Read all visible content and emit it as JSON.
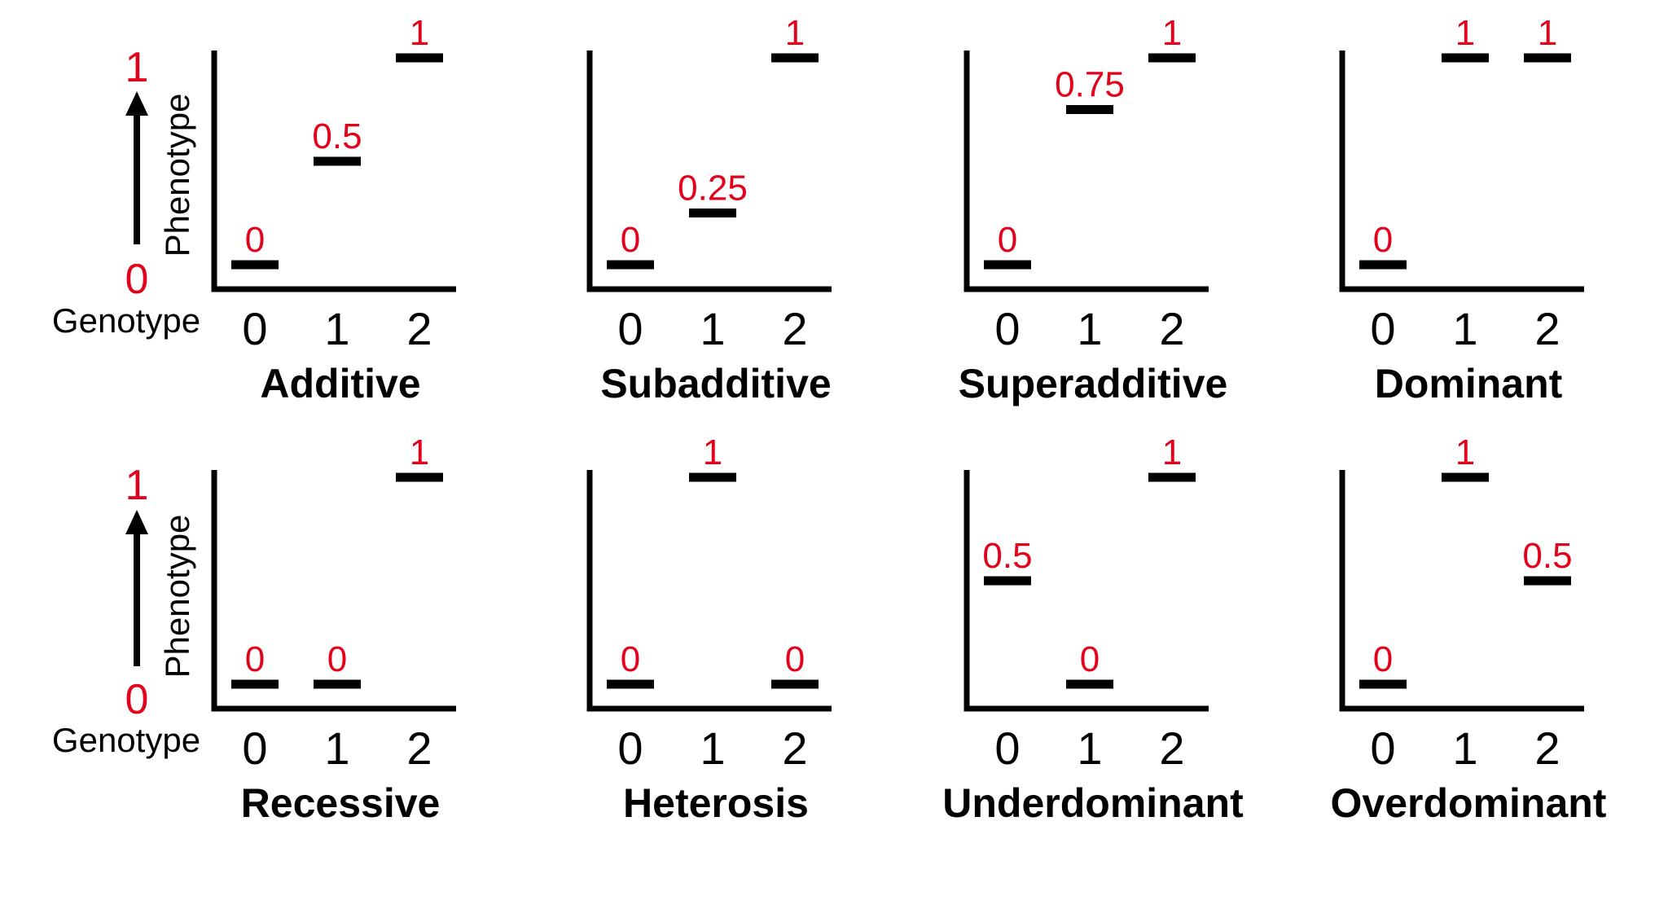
{
  "legend": {
    "y_label": "Phenotype",
    "x_label": "Genotype",
    "y_low": "0",
    "y_high": "1"
  },
  "chart_data": [
    {
      "type": "scatter",
      "title": "Additive",
      "categories": [
        "0",
        "1",
        "2"
      ],
      "values": [
        0,
        0.5,
        1
      ],
      "labels": [
        "0",
        "0.5",
        "1"
      ]
    },
    {
      "type": "scatter",
      "title": "Subadditive",
      "categories": [
        "0",
        "1",
        "2"
      ],
      "values": [
        0,
        0.25,
        1
      ],
      "labels": [
        "0",
        "0.25",
        "1"
      ]
    },
    {
      "type": "scatter",
      "title": "Superadditive",
      "categories": [
        "0",
        "1",
        "2"
      ],
      "values": [
        0,
        0.75,
        1
      ],
      "labels": [
        "0",
        "0.75",
        "1"
      ]
    },
    {
      "type": "scatter",
      "title": "Dominant",
      "categories": [
        "0",
        "1",
        "2"
      ],
      "values": [
        0,
        1,
        1
      ],
      "labels": [
        "0",
        "1",
        "1"
      ]
    },
    {
      "type": "scatter",
      "title": "Recessive",
      "categories": [
        "0",
        "1",
        "2"
      ],
      "values": [
        0,
        0,
        1
      ],
      "labels": [
        "0",
        "0",
        "1"
      ]
    },
    {
      "type": "scatter",
      "title": "Heterosis",
      "categories": [
        "0",
        "1",
        "2"
      ],
      "values": [
        0,
        1,
        0
      ],
      "labels": [
        "0",
        "1",
        "0"
      ]
    },
    {
      "type": "scatter",
      "title": "Underdominant",
      "categories": [
        "0",
        "1",
        "2"
      ],
      "values": [
        0.5,
        0,
        1
      ],
      "labels": [
        "0.5",
        "0",
        "1"
      ]
    },
    {
      "type": "scatter",
      "title": "Overdominant",
      "categories": [
        "0",
        "1",
        "2"
      ],
      "values": [
        0,
        1,
        0.5
      ],
      "labels": [
        "0",
        "1",
        "0.5"
      ]
    }
  ]
}
